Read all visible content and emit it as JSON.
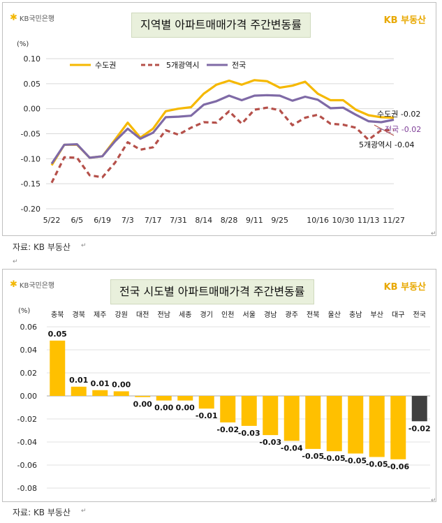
{
  "top": {
    "logo": "KB국민은행",
    "brand": "KB 부동산",
    "title": "지역별 아파트매매가격 주간변동률",
    "unit": "(%)",
    "source": "자료: KB 부동산"
  },
  "bottom": {
    "logo": "KB국민은행",
    "brand": "KB 부동산",
    "title": "전국 시도별 아파트매매가격 주간변동률",
    "unit": "(%)",
    "source": "자료: KB 부동산"
  },
  "colors": {
    "metro": "#f5b800",
    "five": "#b5504a",
    "nation": "#7f6aa6",
    "bar": "#ffc000",
    "nation_bar": "#404040"
  },
  "chart_data": [
    {
      "type": "line",
      "x": [
        "5/22",
        "5/29",
        "6/5",
        "6/12",
        "6/19",
        "6/26",
        "7/3",
        "7/10",
        "7/17",
        "7/24",
        "7/31",
        "8/7",
        "8/14",
        "8/21",
        "8/28",
        "9/4",
        "9/11",
        "9/18",
        "9/25",
        "10/2",
        "10/9",
        "10/16",
        "10/23",
        "10/30",
        "11/6",
        "11/13",
        "11/20",
        "11/27"
      ],
      "x_tick_labels": [
        "5/22",
        "6/5",
        "6/19",
        "7/3",
        "7/17",
        "7/31",
        "8/14",
        "8/28",
        "9/11",
        "9/25",
        "10/16",
        "10/30",
        "11/13",
        "11/27"
      ],
      "ylim": [
        -0.2,
        0.1
      ],
      "y_ticks": [
        "0.10",
        "0.05",
        "0.00",
        "-0.05",
        "-0.10",
        "-0.15",
        "-0.20"
      ],
      "series": [
        {
          "name": "수도권",
          "color_key": "metro",
          "dashed": false,
          "values": [
            -0.113,
            -0.072,
            -0.072,
            -0.098,
            -0.095,
            -0.062,
            -0.028,
            -0.058,
            -0.04,
            -0.005,
            0.0,
            0.003,
            0.03,
            0.048,
            0.056,
            0.048,
            0.057,
            0.055,
            0.042,
            0.046,
            0.054,
            0.03,
            0.017,
            0.017,
            -0.002,
            -0.013,
            -0.017,
            -0.018
          ]
        },
        {
          "name": "5개광역시",
          "color_key": "five",
          "dashed": true,
          "values": [
            -0.148,
            -0.097,
            -0.098,
            -0.133,
            -0.137,
            -0.108,
            -0.067,
            -0.082,
            -0.077,
            -0.043,
            -0.052,
            -0.038,
            -0.027,
            -0.028,
            -0.005,
            -0.03,
            -0.002,
            0.002,
            -0.003,
            -0.033,
            -0.018,
            -0.012,
            -0.03,
            -0.032,
            -0.038,
            -0.062,
            -0.043,
            -0.043
          ]
        },
        {
          "name": "전국",
          "color_key": "nation",
          "dashed": false,
          "values": [
            -0.11,
            -0.072,
            -0.071,
            -0.098,
            -0.095,
            -0.065,
            -0.04,
            -0.06,
            -0.048,
            -0.017,
            -0.016,
            -0.014,
            0.008,
            0.015,
            0.026,
            0.017,
            0.026,
            0.027,
            0.026,
            0.016,
            0.024,
            0.018,
            0.001,
            0.002,
            -0.012,
            -0.025,
            -0.027,
            -0.022
          ]
        }
      ],
      "end_labels": [
        {
          "name": "수도권",
          "value": "-0.02",
          "color_key": "metro"
        },
        {
          "name": "전국",
          "value": "-0.02",
          "color_key": "nation"
        },
        {
          "name": "5개광역시",
          "value": "-0.04",
          "color_key": "five"
        }
      ]
    },
    {
      "type": "bar",
      "categories": [
        "충북",
        "경북",
        "제주",
        "강원",
        "대전",
        "전남",
        "세종",
        "경기",
        "인천",
        "서울",
        "경남",
        "광주",
        "전북",
        "울산",
        "충남",
        "부산",
        "대구",
        "전국"
      ],
      "values": [
        0.048,
        0.008,
        0.005,
        0.004,
        -0.001,
        -0.004,
        -0.004,
        -0.011,
        -0.023,
        -0.026,
        -0.034,
        -0.039,
        -0.046,
        -0.048,
        -0.05,
        -0.053,
        -0.055,
        -0.022
      ],
      "data_labels": [
        "0.05",
        "0.01",
        "0.01",
        "0.00",
        "0.00",
        "0.00",
        "0.00",
        "-0.01",
        "-0.02",
        "-0.03",
        "-0.03",
        "-0.04",
        "-0.05",
        "-0.05",
        "-0.05",
        "-0.05",
        "-0.06",
        "-0.02"
      ],
      "highlight": "전국",
      "ylim": [
        -0.08,
        0.06
      ],
      "y_ticks": [
        "0.06",
        "0.04",
        "0.02",
        "0.00",
        "-0.02",
        "-0.04",
        "-0.06",
        "-0.08"
      ]
    }
  ]
}
